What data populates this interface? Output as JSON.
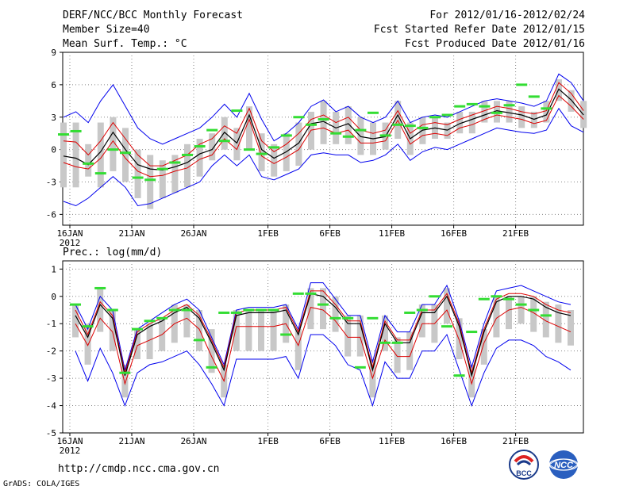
{
  "header": {
    "title": "DERF/NCC/BCC Monthly Forecast",
    "member_size": "Member Size=40",
    "variable": "Mean Surf. Temp.: °C",
    "period": "For 2012/01/16-2012/02/24",
    "fcst_started": "Fcst Started Refer Date 2012/01/15",
    "fcst_produced": "Fcst Produced Date 2012/01/16"
  },
  "colors": {
    "envelope": "#0000ee",
    "spread": "#dd0000",
    "mean": "#000000",
    "observed": "#33dd33",
    "box": "#c8c8c8",
    "grid": "#888888"
  },
  "chart_data": [
    {
      "type": "line",
      "title": "Mean Surf. Temp.: °C",
      "ylim": [
        -7,
        9
      ],
      "yticks": [
        -6,
        -3,
        0,
        3,
        6,
        9
      ],
      "xticks": [
        {
          "day": 1,
          "label": "16JAN",
          "sub": "2012"
        },
        {
          "day": 6,
          "label": "21JAN"
        },
        {
          "day": 11,
          "label": "26JAN"
        },
        {
          "day": 17,
          "label": "1FEB"
        },
        {
          "day": 22,
          "label": "6FEB"
        },
        {
          "day": 27,
          "label": "11FEB"
        },
        {
          "day": 32,
          "label": "16FEB"
        },
        {
          "day": 37,
          "label": "21FEB"
        }
      ],
      "series": [
        {
          "name": "max",
          "values": [
            3.0,
            3.5,
            2.5,
            4.5,
            6.0,
            4.0,
            2.0,
            1.0,
            0.5,
            1.0,
            1.5,
            2.0,
            3.0,
            4.2,
            3.0,
            5.2,
            2.8,
            0.8,
            1.5,
            2.5,
            4.0,
            4.6,
            3.5,
            4.0,
            3.0,
            2.5,
            3.0,
            4.5,
            2.5,
            3.0,
            3.2,
            3.0,
            3.5,
            4.0,
            4.5,
            4.7,
            4.5,
            4.3,
            4.0,
            4.5,
            7.0,
            6.2,
            4.5
          ]
        },
        {
          "name": "upper",
          "values": [
            0.8,
            0.7,
            -0.5,
            0.8,
            2.5,
            1.0,
            -0.5,
            -1.5,
            -1.5,
            -1.0,
            -0.5,
            0.5,
            1.0,
            2.2,
            1.5,
            3.8,
            0.8,
            -0.2,
            0.5,
            1.5,
            2.8,
            3.2,
            2.5,
            3.0,
            1.8,
            1.5,
            1.8,
            3.6,
            1.5,
            2.3,
            2.5,
            2.3,
            2.8,
            3.2,
            3.6,
            4.0,
            3.8,
            3.5,
            3.3,
            3.6,
            6.2,
            5.2,
            3.6
          ]
        },
        {
          "name": "mean",
          "values": [
            -0.6,
            -0.8,
            -1.4,
            -0.2,
            1.6,
            0.0,
            -1.4,
            -1.8,
            -1.9,
            -1.6,
            -1.2,
            -0.4,
            0.0,
            1.6,
            0.6,
            3.2,
            0.0,
            -0.8,
            -0.2,
            0.6,
            2.4,
            2.6,
            2.0,
            2.4,
            1.2,
            1.0,
            1.2,
            3.2,
            1.0,
            1.8,
            2.0,
            1.8,
            2.4,
            2.8,
            3.2,
            3.6,
            3.4,
            3.2,
            2.8,
            3.2,
            5.6,
            4.6,
            3.2
          ]
        },
        {
          "name": "lower",
          "values": [
            -1.2,
            -1.6,
            -1.8,
            -0.8,
            0.8,
            -0.8,
            -2.0,
            -2.5,
            -2.4,
            -2.0,
            -1.7,
            -0.9,
            -0.5,
            1.0,
            0.0,
            2.8,
            -0.6,
            -1.3,
            -0.7,
            0.0,
            1.8,
            2.0,
            1.5,
            1.8,
            0.6,
            0.6,
            0.8,
            2.7,
            0.5,
            1.3,
            1.5,
            1.3,
            2.0,
            2.3,
            2.8,
            3.2,
            3.0,
            2.8,
            2.4,
            2.7,
            5.0,
            4.0,
            2.8
          ]
        },
        {
          "name": "min",
          "values": [
            -4.8,
            -5.2,
            -4.5,
            -3.5,
            -2.5,
            -3.5,
            -5.2,
            -5.0,
            -4.5,
            -4.0,
            -3.5,
            -3.0,
            -1.5,
            -0.5,
            -1.5,
            -0.5,
            -2.5,
            -2.8,
            -2.3,
            -1.8,
            -0.5,
            -0.3,
            -0.5,
            -0.5,
            -1.2,
            -1.0,
            -0.5,
            0.5,
            -1.0,
            -0.2,
            0.2,
            0.0,
            0.5,
            1.0,
            1.5,
            2.0,
            1.8,
            1.6,
            1.5,
            1.8,
            3.8,
            2.2,
            1.6
          ]
        },
        {
          "name": "box_top",
          "values": [
            2.5,
            2.5,
            0.5,
            2.5,
            3.0,
            2.0,
            0.0,
            -0.5,
            -1.0,
            -0.5,
            0.5,
            1.0,
            1.5,
            3.0,
            2.0,
            4.0,
            1.5,
            0.5,
            1.5,
            2.5,
            3.5,
            4.5,
            3.5,
            4.0,
            3.0,
            2.5,
            2.5,
            4.5,
            2.5,
            3.0,
            3.0,
            2.5,
            3.5,
            3.5,
            4.5,
            4.5,
            4.5,
            4.0,
            3.5,
            4.5,
            6.5,
            5.5,
            4.5
          ]
        },
        {
          "name": "box_bottom",
          "values": [
            -3.5,
            -3.5,
            -2.5,
            -3.5,
            -2.0,
            -3.0,
            -4.5,
            -5.5,
            -4.5,
            -4.0,
            -3.5,
            -2.5,
            -1.0,
            0.0,
            -1.0,
            0.0,
            -2.0,
            -2.5,
            -2.0,
            -1.5,
            0.0,
            0.5,
            0.5,
            0.5,
            -0.5,
            -0.5,
            0.0,
            1.0,
            -0.5,
            0.5,
            1.0,
            1.0,
            1.5,
            1.5,
            2.5,
            2.5,
            2.5,
            2.0,
            2.0,
            2.5,
            4.5,
            3.5,
            2.0
          ]
        },
        {
          "name": "observed",
          "values": [
            1.4,
            1.7,
            -1.3,
            -2.2,
            0.0,
            -0.3,
            -2.6,
            -2.8,
            -1.8,
            -1.2,
            -0.5,
            0.3,
            1.8,
            0.8,
            3.6,
            0.0,
            -0.4,
            0.2,
            1.3,
            3.0,
            2.3,
            2.8,
            1.5,
            1.2,
            1.8,
            3.4,
            1.3,
            2.3,
            2.2,
            2.0,
            3.0,
            3.2,
            4.0,
            4.2,
            4.0,
            3.4,
            4.1,
            6.0,
            4.9,
            3.8,
            null,
            null,
            null
          ]
        }
      ]
    },
    {
      "type": "line",
      "title": "Prec.: log(mm/d)",
      "ylim": [
        -5,
        1.3
      ],
      "yticks": [
        -5,
        -4,
        -3,
        -2,
        -1,
        0,
        1
      ],
      "xticks": [
        {
          "day": 1,
          "label": "16JAN",
          "sub": "2012"
        },
        {
          "day": 6,
          "label": "21JAN"
        },
        {
          "day": 11,
          "label": "26JAN"
        },
        {
          "day": 17,
          "label": "1FEB"
        },
        {
          "day": 22,
          "label": "6FEB"
        },
        {
          "day": 27,
          "label": "11FEB"
        },
        {
          "day": 32,
          "label": "16FEB"
        },
        {
          "day": 37,
          "label": "21FEB"
        }
      ],
      "series": [
        {
          "name": "max",
          "values": [
            -0.3,
            -1.2,
            0.0,
            -0.5,
            -2.7,
            -1.2,
            -0.9,
            -0.6,
            -0.3,
            -0.1,
            -0.5,
            -1.5,
            -2.5,
            -0.5,
            -0.4,
            -0.4,
            -0.4,
            -0.3,
            -1.2,
            0.5,
            0.5,
            -0.1,
            -0.7,
            -0.7,
            -2.4,
            -0.7,
            -1.3,
            -1.3,
            -0.3,
            -0.3,
            0.4,
            -0.9,
            -2.6,
            -1.0,
            0.2,
            0.3,
            0.4,
            0.2,
            0.0,
            -0.2,
            -0.3
          ]
        },
        {
          "name": "upper",
          "values": [
            -0.5,
            -1.4,
            -0.2,
            -0.7,
            -2.8,
            -1.3,
            -1.0,
            -0.8,
            -0.5,
            -0.3,
            -0.7,
            -1.6,
            -2.6,
            -0.6,
            -0.5,
            -0.5,
            -0.5,
            -0.4,
            -1.3,
            0.2,
            0.2,
            -0.3,
            -0.9,
            -0.9,
            -2.6,
            -0.9,
            -1.6,
            -1.6,
            -0.5,
            -0.5,
            0.1,
            -1.0,
            -2.8,
            -1.2,
            -0.1,
            0.1,
            0.1,
            0.0,
            -0.3,
            -0.5,
            -0.6
          ]
        },
        {
          "name": "mean",
          "values": [
            -0.7,
            -1.5,
            -0.3,
            -0.8,
            -2.9,
            -1.4,
            -1.1,
            -0.9,
            -0.6,
            -0.4,
            -0.8,
            -1.7,
            -2.7,
            -0.7,
            -0.6,
            -0.6,
            -0.6,
            -0.5,
            -1.4,
            0.1,
            0.0,
            -0.4,
            -1.0,
            -1.0,
            -2.7,
            -1.0,
            -1.7,
            -1.7,
            -0.6,
            -0.6,
            0.0,
            -1.1,
            -2.9,
            -1.3,
            -0.2,
            0.0,
            0.0,
            -0.1,
            -0.4,
            -0.6,
            -0.7
          ]
        },
        {
          "name": "lower",
          "values": [
            -1.0,
            -1.8,
            -0.8,
            -1.3,
            -3.2,
            -1.8,
            -1.6,
            -1.4,
            -1.0,
            -0.8,
            -1.2,
            -2.2,
            -3.1,
            -1.1,
            -1.1,
            -1.1,
            -1.1,
            -1.0,
            -1.8,
            -0.4,
            -0.5,
            -0.9,
            -1.5,
            -1.5,
            -3.0,
            -1.6,
            -2.2,
            -2.2,
            -1.0,
            -1.0,
            -0.5,
            -1.6,
            -3.2,
            -1.7,
            -0.8,
            -0.5,
            -0.4,
            -0.6,
            -0.9,
            -1.1,
            -1.3
          ]
        },
        {
          "name": "min",
          "values": [
            -2.0,
            -3.1,
            -1.9,
            -2.8,
            -4.0,
            -2.8,
            -2.5,
            -2.4,
            -2.2,
            -2.0,
            -2.5,
            -3.2,
            -4.0,
            -2.3,
            -2.3,
            -2.3,
            -2.3,
            -2.2,
            -3.0,
            -1.4,
            -1.4,
            -1.8,
            -2.5,
            -2.7,
            -4.0,
            -2.4,
            -3.0,
            -3.0,
            -2.0,
            -2.0,
            -1.4,
            -2.7,
            -4.0,
            -2.8,
            -1.9,
            -1.6,
            -1.6,
            -1.8,
            -2.2,
            -2.4,
            -2.7
          ]
        },
        {
          "name": "box_top",
          "values": [
            -0.3,
            -1.0,
            0.3,
            -0.5,
            -2.5,
            -1.2,
            -1.0,
            -0.8,
            -0.3,
            -0.3,
            -0.5,
            -1.2,
            -2.5,
            -0.5,
            -0.5,
            -0.5,
            -0.5,
            -0.3,
            -1.2,
            0.3,
            0.3,
            0.0,
            -0.7,
            -0.7,
            -2.3,
            -0.7,
            -1.5,
            -1.3,
            -0.3,
            -0.3,
            0.3,
            -0.8,
            -2.5,
            -1.2,
            0.0,
            0.0,
            0.0,
            0.0,
            -0.2,
            -0.3,
            -0.5
          ]
        },
        {
          "name": "box_bottom",
          "values": [
            -1.5,
            -2.5,
            -1.3,
            -2.0,
            -3.7,
            -2.3,
            -2.3,
            -2.0,
            -1.7,
            -1.5,
            -2.0,
            -2.8,
            -3.7,
            -2.0,
            -2.0,
            -2.0,
            -2.0,
            -1.7,
            -2.7,
            -1.2,
            -1.2,
            -1.3,
            -2.2,
            -2.2,
            -3.7,
            -2.0,
            -2.8,
            -2.7,
            -1.5,
            -1.7,
            -1.0,
            -2.3,
            -3.7,
            -2.5,
            -1.5,
            -1.2,
            -1.0,
            -1.3,
            -1.5,
            -1.7,
            -1.8
          ]
        },
        {
          "name": "observed",
          "values": [
            -0.3,
            -1.1,
            0.3,
            -0.5,
            -2.8,
            -1.2,
            -0.9,
            -0.8,
            -0.5,
            -0.5,
            -1.6,
            -2.6,
            -0.6,
            -0.6,
            -0.5,
            -0.5,
            -0.5,
            -1.4,
            0.1,
            0.1,
            -0.3,
            -0.8,
            -0.8,
            -2.6,
            -0.8,
            -1.7,
            -1.7,
            -0.6,
            -0.5,
            0.0,
            -1.1,
            -2.9,
            -1.3,
            -0.1,
            0.0,
            -0.1,
            -0.3,
            -0.5,
            -0.7,
            null,
            null
          ]
        }
      ]
    }
  ],
  "panel2_title": "Prec.: log(mm/d)",
  "footer": {
    "url": "http://cmdp.ncc.cma.gov.cn",
    "grads": "GrADS: COLA/IGES",
    "logo_bcc": "BCC",
    "logo_ncc": "NCC"
  }
}
